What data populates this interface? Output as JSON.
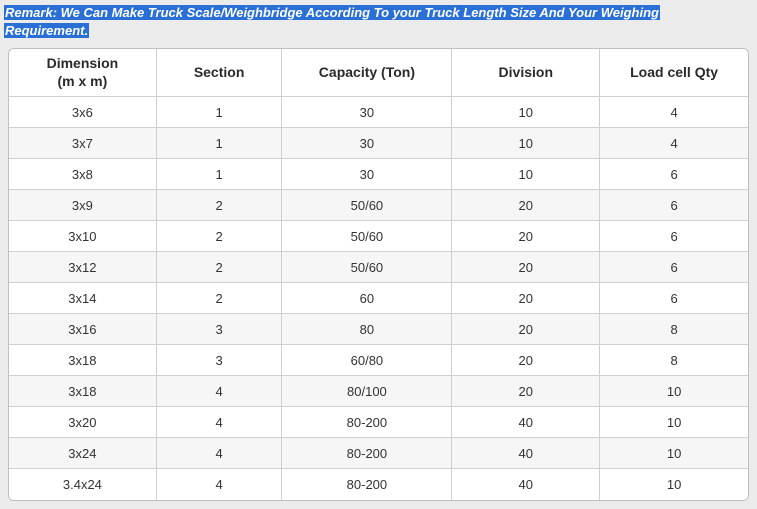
{
  "remark": {
    "line1": "Remark: We Can Make Truck Scale/Weighbridge According To your Truck Length Size And Your Weighing",
    "line2": "Requirement."
  },
  "table": {
    "columns": [
      {
        "label": "Dimension\n(m x m)",
        "width_pct": 20
      },
      {
        "label": "Section",
        "width_pct": 17
      },
      {
        "label": "Capacity (Ton)",
        "width_pct": 23
      },
      {
        "label": "Division",
        "width_pct": 20
      },
      {
        "label": "Load cell Qty",
        "width_pct": 20
      }
    ],
    "rows": [
      [
        "3x6",
        "1",
        "30",
        "10",
        "4"
      ],
      [
        "3x7",
        "1",
        "30",
        "10",
        "4"
      ],
      [
        "3x8",
        "1",
        "30",
        "10",
        "6"
      ],
      [
        "3x9",
        "2",
        "50/60",
        "20",
        "6"
      ],
      [
        "3x10",
        "2",
        "50/60",
        "20",
        "6"
      ],
      [
        "3x12",
        "2",
        "50/60",
        "20",
        "6"
      ],
      [
        "3x14",
        "2",
        "60",
        "20",
        "6"
      ],
      [
        "3x16",
        "3",
        "80",
        "20",
        "8"
      ],
      [
        "3x18",
        "3",
        "60/80",
        "20",
        "8"
      ],
      [
        "3x18",
        "4",
        "80/100",
        "20",
        "10"
      ],
      [
        "3x20",
        "4",
        "80-200",
        "40",
        "10"
      ],
      [
        "3x24",
        "4",
        "80-200",
        "40",
        "10"
      ],
      [
        "3.4x24",
        "4",
        "80-200",
        "40",
        "10"
      ]
    ],
    "style": {
      "header_fontsize": 14,
      "cell_fontsize": 13,
      "border_color": "#d0d0d0",
      "outer_border_color": "#bfbfbf",
      "row_even_bg": "#f6f6f6",
      "row_odd_bg": "#ffffff",
      "text_color": "#333333",
      "header_text_color": "#2a2a2a",
      "border_radius": 6
    }
  },
  "page_bg": "#ebebeb",
  "highlight_bg": "#2a6fd6",
  "highlight_fg": "#ffffff"
}
